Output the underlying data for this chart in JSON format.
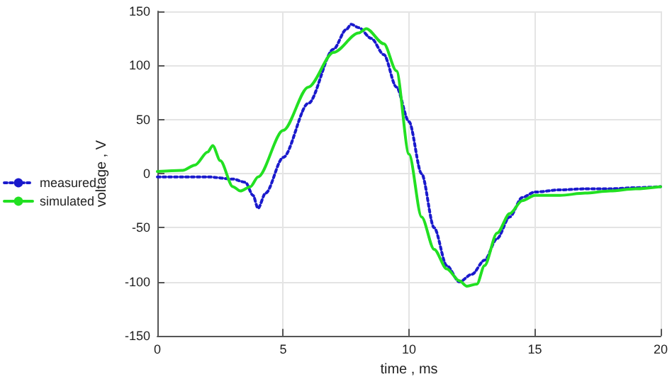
{
  "chart_data": {
    "type": "line",
    "xlabel": "time , ms",
    "ylabel": "voltage , V",
    "xlim": [
      0,
      20
    ],
    "xticks": [
      0,
      5,
      10,
      15,
      20
    ],
    "ylim": [
      -150,
      150
    ],
    "yticks": [
      -150,
      -100,
      -50,
      0,
      50,
      100,
      150
    ],
    "grid": true,
    "legend": "left",
    "marker": "none",
    "series": [
      {
        "name": "measured",
        "color": "#1a1acc",
        "line_style": "dotted",
        "x": [
          0,
          1,
          2,
          3,
          3.5,
          3.8,
          4,
          4.3,
          5,
          6,
          7,
          7.5,
          7.7,
          8,
          8.5,
          9,
          9.5,
          10,
          10.5,
          11,
          11.5,
          12,
          12.5,
          13,
          13.5,
          14,
          14.5,
          15,
          16,
          17,
          18,
          19,
          20
        ],
        "values": [
          -3,
          -3,
          -3,
          -5,
          -8,
          -20,
          -32,
          -18,
          15,
          65,
          115,
          133,
          138,
          135,
          125,
          110,
          80,
          48,
          0,
          -50,
          -85,
          -100,
          -93,
          -80,
          -60,
          -40,
          -22,
          -17,
          -15,
          -14,
          -14,
          -13,
          -12
        ]
      },
      {
        "name": "simulated",
        "color": "#22e022",
        "line_style": "solid",
        "x": [
          0,
          1,
          1.5,
          2,
          2.2,
          2.5,
          3,
          3.3,
          3.7,
          4,
          5,
          6,
          7,
          8,
          8.3,
          9,
          9.5,
          10,
          10.5,
          11,
          11.5,
          12,
          12.3,
          12.7,
          13,
          13.5,
          14,
          14.5,
          15,
          16,
          17,
          18,
          19,
          20
        ],
        "values": [
          2,
          3,
          8,
          20,
          26,
          12,
          -12,
          -16,
          -12,
          -3,
          40,
          80,
          112,
          130,
          134,
          120,
          95,
          18,
          -40,
          -70,
          -88,
          -99,
          -104,
          -102,
          -85,
          -55,
          -37,
          -25,
          -20,
          -20,
          -18,
          -16,
          -14,
          -12
        ]
      }
    ]
  }
}
